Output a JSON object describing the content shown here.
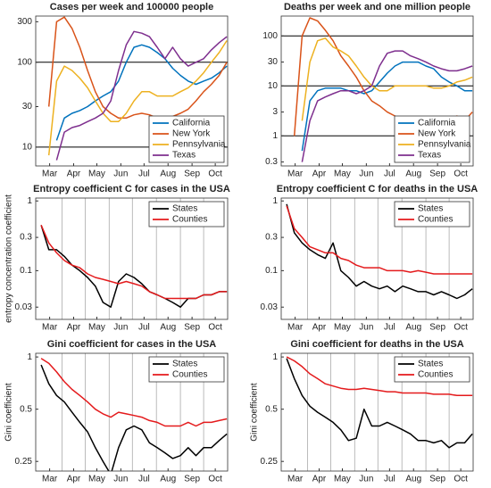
{
  "chart_data": [
    {
      "type": "line",
      "title": "Cases per week and 100000 people",
      "yscale": "log",
      "legend": "lower right",
      "x": [
        65,
        75,
        85,
        95,
        105,
        115,
        125,
        135,
        145,
        155,
        165,
        175,
        185,
        195,
        205,
        215,
        225,
        235,
        245,
        255,
        265,
        275,
        285,
        295,
        305
      ],
      "xlim": [
        58,
        306
      ],
      "xticks": [
        {
          "value": 76,
          "label": "Mar"
        },
        {
          "value": 107,
          "label": "Apr"
        },
        {
          "value": 137,
          "label": "May"
        },
        {
          "value": 168,
          "label": "Jun"
        },
        {
          "value": 198,
          "label": "Jul"
        },
        {
          "value": 229,
          "label": "Aug"
        },
        {
          "value": 260,
          "label": "Sep"
        },
        {
          "value": 290,
          "label": "Oct"
        }
      ],
      "ylim": [
        6,
        350
      ],
      "yticks": [
        10,
        30,
        100,
        300
      ],
      "hlines": [
        10,
        100
      ],
      "series": [
        {
          "name": "California",
          "color": "#0072BD",
          "values": [
            null,
            null,
            12,
            22,
            25,
            27,
            30,
            35,
            40,
            45,
            60,
            100,
            150,
            160,
            150,
            130,
            110,
            85,
            70,
            60,
            55,
            60,
            65,
            75,
            90
          ]
        },
        {
          "name": "New York",
          "color": "#D95319",
          "values": [
            null,
            30,
            300,
            340,
            250,
            150,
            80,
            45,
            30,
            25,
            22,
            22,
            24,
            25,
            24,
            22,
            22,
            23,
            25,
            28,
            35,
            45,
            55,
            70,
            100
          ]
        },
        {
          "name": "Pennsylvania",
          "color": "#EDB120",
          "values": [
            null,
            8,
            60,
            90,
            80,
            65,
            50,
            35,
            25,
            20,
            20,
            25,
            35,
            45,
            45,
            40,
            40,
            40,
            45,
            50,
            60,
            75,
            100,
            130,
            180
          ]
        },
        {
          "name": "Texas",
          "color": "#7E2F8E",
          "values": [
            null,
            null,
            7,
            15,
            17,
            18,
            20,
            22,
            25,
            35,
            80,
            160,
            230,
            220,
            200,
            150,
            110,
            150,
            110,
            90,
            100,
            110,
            140,
            170,
            200
          ]
        }
      ]
    },
    {
      "type": "line",
      "title": "Deaths per week and one million people",
      "yscale": "log",
      "legend": "lower right",
      "x": [
        65,
        75,
        85,
        95,
        105,
        115,
        125,
        135,
        145,
        155,
        165,
        175,
        185,
        195,
        205,
        215,
        225,
        235,
        245,
        255,
        265,
        275,
        285,
        295,
        305
      ],
      "xlim": [
        58,
        306
      ],
      "xticks": [
        {
          "value": 76,
          "label": "Mar"
        },
        {
          "value": 107,
          "label": "Apr"
        },
        {
          "value": 137,
          "label": "May"
        },
        {
          "value": 168,
          "label": "Jun"
        },
        {
          "value": 198,
          "label": "Jul"
        },
        {
          "value": 229,
          "label": "Aug"
        },
        {
          "value": 260,
          "label": "Sep"
        },
        {
          "value": 290,
          "label": "Oct"
        }
      ],
      "ylim": [
        0.25,
        250
      ],
      "yticks": [
        0.3,
        1,
        3,
        10,
        30,
        100
      ],
      "hlines": [
        1,
        10,
        100
      ],
      "series": [
        {
          "name": "California",
          "color": "#0072BD",
          "values": [
            null,
            null,
            0.5,
            5,
            8,
            9,
            9,
            9,
            8,
            8,
            7,
            8,
            12,
            18,
            25,
            30,
            30,
            30,
            25,
            22,
            15,
            12,
            10,
            8,
            8
          ]
        },
        {
          "name": "New York",
          "color": "#D95319",
          "values": [
            null,
            1,
            100,
            230,
            200,
            130,
            80,
            40,
            25,
            15,
            8,
            5,
            4,
            3,
            2.5,
            2,
            2,
            2,
            1.5,
            1.5,
            2,
            2,
            2.5,
            2,
            3
          ]
        },
        {
          "name": "Pennsylvania",
          "color": "#EDB120",
          "values": [
            null,
            null,
            2,
            30,
            80,
            90,
            60,
            50,
            40,
            25,
            15,
            10,
            8,
            8,
            10,
            10,
            10,
            10,
            10,
            9,
            9,
            10,
            12,
            13,
            15
          ]
        },
        {
          "name": "Texas",
          "color": "#7E2F8E",
          "values": [
            null,
            null,
            0.3,
            2,
            5,
            6,
            7,
            8,
            8,
            7,
            8,
            10,
            25,
            45,
            50,
            50,
            40,
            35,
            30,
            25,
            22,
            20,
            20,
            22,
            25
          ]
        }
      ]
    },
    {
      "type": "line",
      "title": "Entropy coefficient C for cases in the USA",
      "ylabel": "entropy concentration coefficient",
      "yscale": "log",
      "legend": "upper right",
      "x": [
        65,
        75,
        85,
        95,
        105,
        115,
        125,
        135,
        145,
        155,
        165,
        175,
        185,
        195,
        205,
        215,
        225,
        235,
        245,
        255,
        265,
        275,
        285,
        295,
        305
      ],
      "xlim": [
        58,
        306
      ],
      "xticks": [
        {
          "value": 76,
          "label": "Mar"
        },
        {
          "value": 107,
          "label": "Apr"
        },
        {
          "value": 137,
          "label": "May"
        },
        {
          "value": 168,
          "label": "Jun"
        },
        {
          "value": 198,
          "label": "Jul"
        },
        {
          "value": 229,
          "label": "Aug"
        },
        {
          "value": 260,
          "label": "Sep"
        },
        {
          "value": 290,
          "label": "Oct"
        }
      ],
      "xgrid": [
        92,
        122,
        153,
        183,
        214,
        245,
        275
      ],
      "ylim": [
        0.02,
        1.1
      ],
      "yticks": [
        0.03,
        0.1,
        0.3,
        1
      ],
      "series": [
        {
          "name": "States",
          "color": "#000000",
          "values": [
            0.45,
            0.2,
            0.2,
            0.16,
            0.12,
            0.1,
            0.08,
            0.06,
            0.035,
            0.03,
            0.07,
            0.09,
            0.08,
            0.065,
            0.05,
            0.045,
            0.04,
            0.035,
            0.03,
            0.04,
            0.04,
            0.045,
            0.045,
            0.05,
            0.05
          ]
        },
        {
          "name": "Counties",
          "color": "#E41A1C",
          "values": [
            0.45,
            0.25,
            0.18,
            0.14,
            0.12,
            0.11,
            0.09,
            0.08,
            0.075,
            0.07,
            0.065,
            0.07,
            0.065,
            0.06,
            0.05,
            0.045,
            0.04,
            0.04,
            0.04,
            0.04,
            0.04,
            0.045,
            0.045,
            0.05,
            0.05
          ]
        }
      ]
    },
    {
      "type": "line",
      "title": "Entropy coefficient C for deaths in the USA",
      "yscale": "log",
      "legend": "upper right",
      "x": [
        65,
        75,
        85,
        95,
        105,
        115,
        125,
        135,
        145,
        155,
        165,
        175,
        185,
        195,
        205,
        215,
        225,
        235,
        245,
        255,
        265,
        275,
        285,
        295,
        305
      ],
      "xlim": [
        58,
        306
      ],
      "xticks": [
        {
          "value": 76,
          "label": "Mar"
        },
        {
          "value": 107,
          "label": "Apr"
        },
        {
          "value": 137,
          "label": "May"
        },
        {
          "value": 168,
          "label": "Jun"
        },
        {
          "value": 198,
          "label": "Jul"
        },
        {
          "value": 229,
          "label": "Aug"
        },
        {
          "value": 260,
          "label": "Sep"
        },
        {
          "value": 290,
          "label": "Oct"
        }
      ],
      "xgrid": [
        92,
        122,
        153,
        183,
        214,
        245,
        275
      ],
      "ylim": [
        0.02,
        1.1
      ],
      "yticks": [
        0.03,
        0.1,
        0.3,
        1
      ],
      "series": [
        {
          "name": "States",
          "color": "#000000",
          "values": [
            0.9,
            0.35,
            0.25,
            0.2,
            0.17,
            0.15,
            0.25,
            0.1,
            0.08,
            0.06,
            0.07,
            0.06,
            0.055,
            0.06,
            0.05,
            0.06,
            0.055,
            0.05,
            0.05,
            0.045,
            0.05,
            0.045,
            0.04,
            0.045,
            0.055
          ]
        },
        {
          "name": "Counties",
          "color": "#E41A1C",
          "values": [
            0.85,
            0.4,
            0.3,
            0.22,
            0.2,
            0.18,
            0.18,
            0.15,
            0.14,
            0.12,
            0.11,
            0.11,
            0.11,
            0.1,
            0.1,
            0.1,
            0.095,
            0.1,
            0.095,
            0.09,
            0.09,
            0.09,
            0.09,
            0.09,
            0.09
          ]
        }
      ]
    },
    {
      "type": "line",
      "title": "Gini coefficient for cases in the USA",
      "ylabel": "Gini coefficient",
      "yscale": "log",
      "legend": "upper right",
      "x": [
        65,
        75,
        85,
        95,
        105,
        115,
        125,
        135,
        145,
        155,
        165,
        175,
        185,
        195,
        205,
        215,
        225,
        235,
        245,
        255,
        265,
        275,
        285,
        295,
        305
      ],
      "xlim": [
        58,
        306
      ],
      "xticks": [
        {
          "value": 76,
          "label": "Mar"
        },
        {
          "value": 107,
          "label": "Apr"
        },
        {
          "value": 137,
          "label": "May"
        },
        {
          "value": 168,
          "label": "Jun"
        },
        {
          "value": 198,
          "label": "Jul"
        },
        {
          "value": 229,
          "label": "Aug"
        },
        {
          "value": 260,
          "label": "Sep"
        },
        {
          "value": 290,
          "label": "Oct"
        }
      ],
      "xgrid": [
        92,
        122,
        153,
        183,
        214,
        245,
        275
      ],
      "ylim": [
        0.22,
        1.05
      ],
      "yticks": [
        0.25,
        0.5,
        1
      ],
      "series": [
        {
          "name": "States",
          "color": "#000000",
          "values": [
            0.9,
            0.7,
            0.6,
            0.55,
            0.48,
            0.42,
            0.37,
            0.3,
            0.25,
            0.21,
            0.3,
            0.38,
            0.4,
            0.38,
            0.32,
            0.3,
            0.28,
            0.26,
            0.27,
            0.3,
            0.27,
            0.3,
            0.3,
            0.33,
            0.36
          ]
        },
        {
          "name": "Counties",
          "color": "#E41A1C",
          "values": [
            0.98,
            0.92,
            0.82,
            0.72,
            0.65,
            0.6,
            0.55,
            0.5,
            0.47,
            0.45,
            0.48,
            0.47,
            0.46,
            0.45,
            0.43,
            0.42,
            0.4,
            0.4,
            0.4,
            0.42,
            0.4,
            0.42,
            0.42,
            0.43,
            0.44
          ]
        }
      ]
    },
    {
      "type": "line",
      "title": "Gini coefficient for deaths in the USA",
      "ylabel": "Gini coefficient",
      "yscale": "log",
      "legend": "upper right",
      "x": [
        65,
        75,
        85,
        95,
        105,
        115,
        125,
        135,
        145,
        155,
        165,
        175,
        185,
        195,
        205,
        215,
        225,
        235,
        245,
        255,
        265,
        275,
        285,
        295,
        305
      ],
      "xlim": [
        58,
        306
      ],
      "xticks": [
        {
          "value": 76,
          "label": "Mar"
        },
        {
          "value": 107,
          "label": "Apr"
        },
        {
          "value": 137,
          "label": "May"
        },
        {
          "value": 168,
          "label": "Jun"
        },
        {
          "value": 198,
          "label": "Jul"
        },
        {
          "value": 229,
          "label": "Aug"
        },
        {
          "value": 260,
          "label": "Sep"
        },
        {
          "value": 290,
          "label": "Oct"
        }
      ],
      "xgrid": [
        92,
        122,
        153,
        183,
        214,
        245,
        275
      ],
      "ylim": [
        0.22,
        1.05
      ],
      "yticks": [
        0.25,
        0.5,
        1
      ],
      "series": [
        {
          "name": "States",
          "color": "#000000",
          "values": [
            0.98,
            0.75,
            0.6,
            0.52,
            0.48,
            0.45,
            0.42,
            0.38,
            0.33,
            0.34,
            0.5,
            0.4,
            0.4,
            0.42,
            0.4,
            0.38,
            0.36,
            0.33,
            0.33,
            0.32,
            0.33,
            0.3,
            0.32,
            0.32,
            0.36
          ]
        },
        {
          "name": "Counties",
          "color": "#E41A1C",
          "values": [
            1.0,
            0.95,
            0.88,
            0.8,
            0.75,
            0.7,
            0.68,
            0.66,
            0.65,
            0.65,
            0.66,
            0.65,
            0.64,
            0.63,
            0.63,
            0.62,
            0.62,
            0.62,
            0.62,
            0.61,
            0.61,
            0.61,
            0.6,
            0.6,
            0.6
          ]
        }
      ]
    }
  ]
}
